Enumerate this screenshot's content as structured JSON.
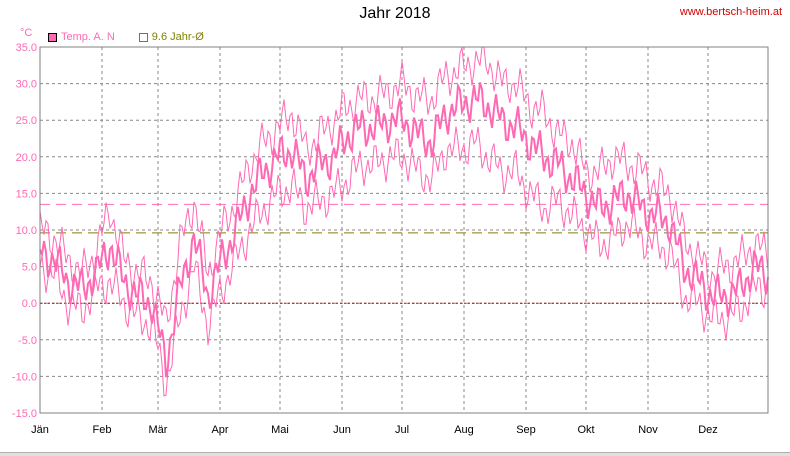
{
  "chart_data": {
    "type": "line",
    "title": "Jahr 2018",
    "source": "www.bertsch-heim.at",
    "ylabel": "°C",
    "ylim": [
      -15,
      35
    ],
    "yticks": [
      "35.0",
      "30.0",
      "25.0",
      "20.0",
      "15.0",
      "10.0",
      "5.0",
      "0.0",
      "-5.0",
      "-10.0",
      "-15.0"
    ],
    "xticks": [
      "Jän",
      "Feb",
      "Mär",
      "Apr",
      "Mai",
      "Jun",
      "Jul",
      "Aug",
      "Sep",
      "Okt",
      "Nov",
      "Dez"
    ],
    "grid": true,
    "legend_placement": "top-left",
    "legend": [
      {
        "label": "Temp. A. N",
        "color": "#ff69b4",
        "style": "filled"
      },
      {
        "label": "9.6 Jahr-Ø",
        "color": "#808000",
        "style": "outline"
      }
    ],
    "reference_lines": [
      {
        "name": "Jahr-Ø",
        "value": 9.6,
        "color": "#808000",
        "style": "dashed"
      },
      {
        "name": "upper reference",
        "value": 13.5,
        "color": "#ff69b4",
        "style": "dashed"
      },
      {
        "name": "zero",
        "value": 0.0,
        "color": "#cc0000",
        "style": "dotted"
      }
    ],
    "series_weekly_day_of_year": [
      1,
      8,
      15,
      22,
      29,
      36,
      43,
      50,
      57,
      64,
      71,
      78,
      85,
      92,
      99,
      106,
      113,
      120,
      127,
      134,
      141,
      148,
      155,
      162,
      169,
      176,
      183,
      190,
      197,
      204,
      211,
      218,
      225,
      232,
      239,
      246,
      253,
      260,
      267,
      274,
      281,
      288,
      295,
      302,
      309,
      316,
      323,
      330,
      337,
      344,
      351,
      358,
      364
    ],
    "series": [
      {
        "name": "max",
        "values": [
          10,
          9,
          6,
          4,
          7,
          13,
          6,
          4,
          3,
          -3,
          8,
          14,
          4,
          10,
          14,
          19,
          22,
          24,
          26,
          21,
          23,
          25,
          27,
          28,
          28,
          29,
          30,
          28,
          28,
          31,
          32,
          33,
          33,
          30,
          30,
          27,
          26,
          23,
          22,
          18,
          18,
          20,
          19,
          18,
          16,
          15,
          9,
          6,
          4,
          5,
          6,
          8,
          7
        ]
      },
      {
        "name": "mean",
        "values": [
          7,
          6,
          3,
          2,
          4,
          8,
          3,
          1,
          0,
          -8,
          2,
          9,
          1,
          6,
          10,
          15,
          18,
          20,
          21,
          17,
          19,
          20,
          23,
          24,
          24,
          25,
          25,
          23,
          22,
          26,
          27,
          28,
          27,
          25,
          24,
          22,
          20,
          19,
          17,
          15,
          13,
          14,
          15,
          13,
          12,
          11,
          5,
          3,
          1,
          1,
          2,
          5,
          4
        ]
      },
      {
        "name": "min",
        "values": [
          5,
          4,
          0,
          -1,
          2,
          3,
          0,
          -2,
          -3,
          -11,
          -2,
          5,
          -3,
          2,
          6,
          10,
          13,
          15,
          16,
          13,
          14,
          15,
          17,
          19,
          19,
          20,
          20,
          18,
          17,
          21,
          21,
          22,
          20,
          18,
          18,
          15,
          13,
          14,
          12,
          10,
          8,
          9,
          11,
          9,
          8,
          7,
          1,
          0,
          -2,
          -2,
          -1,
          2,
          2
        ]
      }
    ]
  }
}
